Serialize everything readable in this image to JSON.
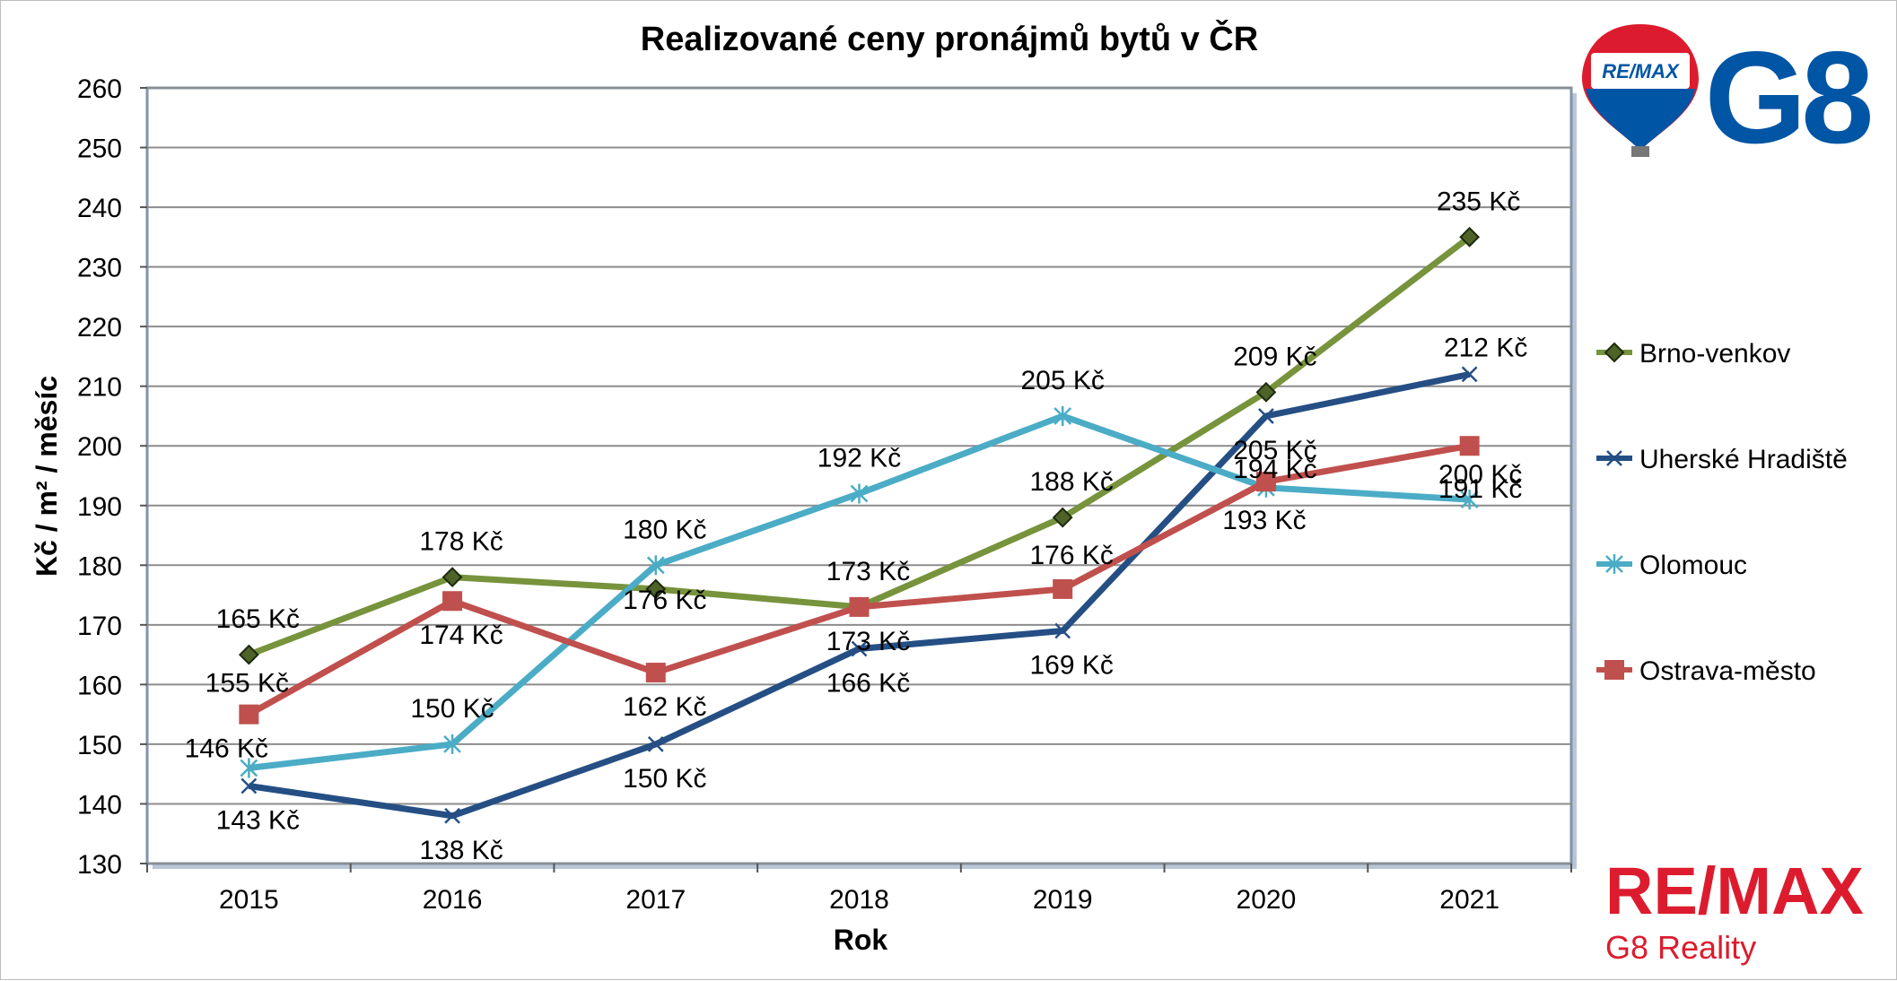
{
  "chart_data": {
    "type": "line",
    "title": "Realizované ceny pronájmů bytů v ČR",
    "xlabel": "Rok",
    "ylabel": "Kč / m² / měsíc",
    "ylim": [
      130,
      260
    ],
    "ytick_step": 10,
    "grid": true,
    "legend_position": "right",
    "value_suffix": " Kč",
    "categories": [
      "2015",
      "2016",
      "2017",
      "2018",
      "2019",
      "2020",
      "2021"
    ],
    "series": [
      {
        "name": "Brno-venkov",
        "color": "#77933C",
        "marker": "diamond",
        "values": [
          165,
          178,
          176,
          173,
          188,
          209,
          235
        ]
      },
      {
        "name": "Uherské Hradiště",
        "color": "#254F84",
        "marker": "x",
        "values": [
          143,
          138,
          150,
          166,
          169,
          205,
          212
        ]
      },
      {
        "name": "Olomouc",
        "color": "#4BACC6",
        "marker": "star",
        "values": [
          146,
          150,
          180,
          192,
          205,
          193,
          191
        ]
      },
      {
        "name": "Ostrava-město",
        "color": "#C0504D",
        "marker": "square",
        "values": [
          155,
          174,
          162,
          173,
          176,
          194,
          200
        ]
      }
    ]
  },
  "logos": {
    "top_balloon_text": "RE/MAX",
    "top_brand": "G8",
    "bottom_brand": "RE/MAX",
    "bottom_subtitle": "G8 Reality",
    "remax_red": "#DC1C2E",
    "remax_blue": "#0055A5"
  }
}
